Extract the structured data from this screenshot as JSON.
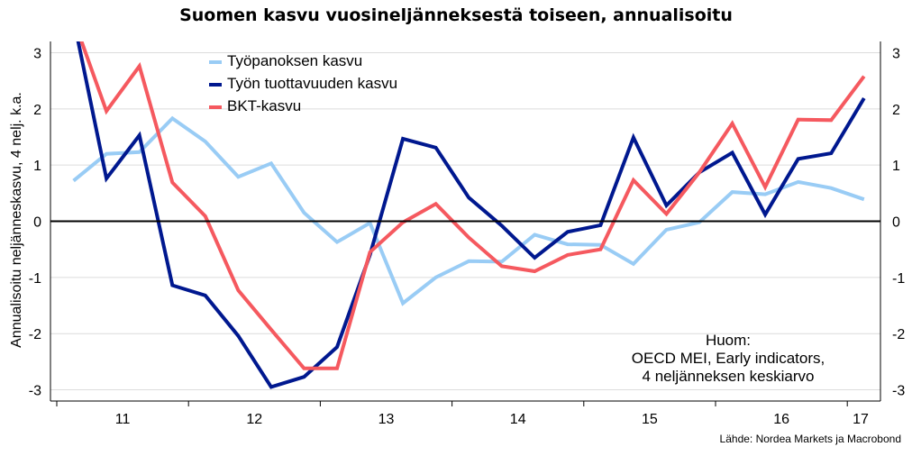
{
  "chart_data": {
    "type": "line",
    "title": "Suomen kasvu vuosineljänneksestä toiseen, annualisoitu",
    "ylabel": "Annualisoitu neljänneskasvu, 4 nelj. k.a.",
    "ylim": [
      -3.2,
      3.2
    ],
    "yticks": [
      -3,
      -2,
      -1,
      0,
      1,
      2,
      3
    ],
    "yticklabels": [
      "-3",
      "-2",
      "-1",
      "0",
      "1",
      "2",
      "3"
    ],
    "x_tick_labels": [
      "11",
      "12",
      "13",
      "14",
      "15",
      "16",
      "17"
    ],
    "x_quarters": [
      "2010Q4",
      "2011Q1",
      "2011Q2",
      "2011Q3",
      "2011Q4",
      "2012Q1",
      "2012Q2",
      "2012Q3",
      "2012Q4",
      "2013Q1",
      "2013Q2",
      "2013Q3",
      "2013Q4",
      "2014Q1",
      "2014Q2",
      "2014Q3",
      "2014Q4",
      "2015Q1",
      "2015Q2",
      "2015Q3",
      "2015Q4",
      "2016Q1",
      "2016Q2",
      "2016Q3",
      "2016Q4",
      "2017Q1"
    ],
    "grid": true,
    "legend_position": "top-left",
    "series": [
      {
        "name": "Työpanoksen kasvu",
        "color": "#99ccf5",
        "values": [
          0.72,
          1.2,
          1.23,
          1.83,
          1.42,
          0.79,
          1.03,
          0.15,
          -0.37,
          -0.03,
          -1.46,
          -1.0,
          -0.71,
          -0.72,
          -0.24,
          -0.41,
          -0.42,
          -0.76,
          -0.15,
          -0.02,
          0.52,
          0.48,
          0.7,
          0.59,
          0.39,
          null
        ]
      },
      {
        "name": "Työn tuottavuuden kasvu",
        "color": "#00188f",
        "values": [
          3.6,
          0.76,
          1.53,
          -1.14,
          -1.32,
          -2.04,
          -2.95,
          -2.77,
          -2.24,
          -0.6,
          1.47,
          1.31,
          0.42,
          -0.08,
          -0.65,
          -0.19,
          -0.07,
          1.49,
          0.28,
          0.87,
          1.22,
          0.12,
          1.11,
          1.21,
          2.19,
          null
        ]
      },
      {
        "name": "BKT-kasvu",
        "color": "#f5595f",
        "values": [
          3.6,
          1.96,
          2.76,
          0.69,
          0.09,
          -1.23,
          -1.93,
          -2.62,
          -2.62,
          -0.55,
          -0.02,
          0.31,
          -0.29,
          -0.8,
          -0.89,
          -0.6,
          -0.5,
          0.73,
          0.13,
          0.87,
          1.74,
          0.61,
          1.81,
          1.8,
          2.58,
          null
        ]
      }
    ],
    "zero_line": true
  },
  "note": {
    "line1": "Huom:",
    "line2": "OECD MEI, Early indicators,",
    "line3": "4 neljänneksen keskiarvo"
  },
  "source": "Lähde: Nordea Markets ja Macrobond"
}
